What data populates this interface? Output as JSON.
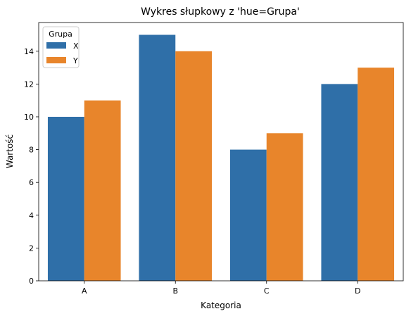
{
  "chart_data": {
    "type": "bar",
    "title": "Wykres słupkowy z 'hue=Grupa'",
    "xlabel": "Kategoria",
    "ylabel": "Wartość",
    "categories": [
      "A",
      "B",
      "C",
      "D"
    ],
    "series": [
      {
        "name": "X",
        "color": "#2f6fa8",
        "values": [
          10,
          15,
          8,
          12
        ]
      },
      {
        "name": "Y",
        "color": "#e8852b",
        "values": [
          11,
          14,
          9,
          13
        ]
      }
    ],
    "ylim": [
      0,
      15.75
    ],
    "yticks": [
      0,
      2,
      4,
      6,
      8,
      10,
      12,
      14
    ],
    "legend": {
      "title": "Grupa",
      "placement": "top-left"
    },
    "grid": false
  }
}
